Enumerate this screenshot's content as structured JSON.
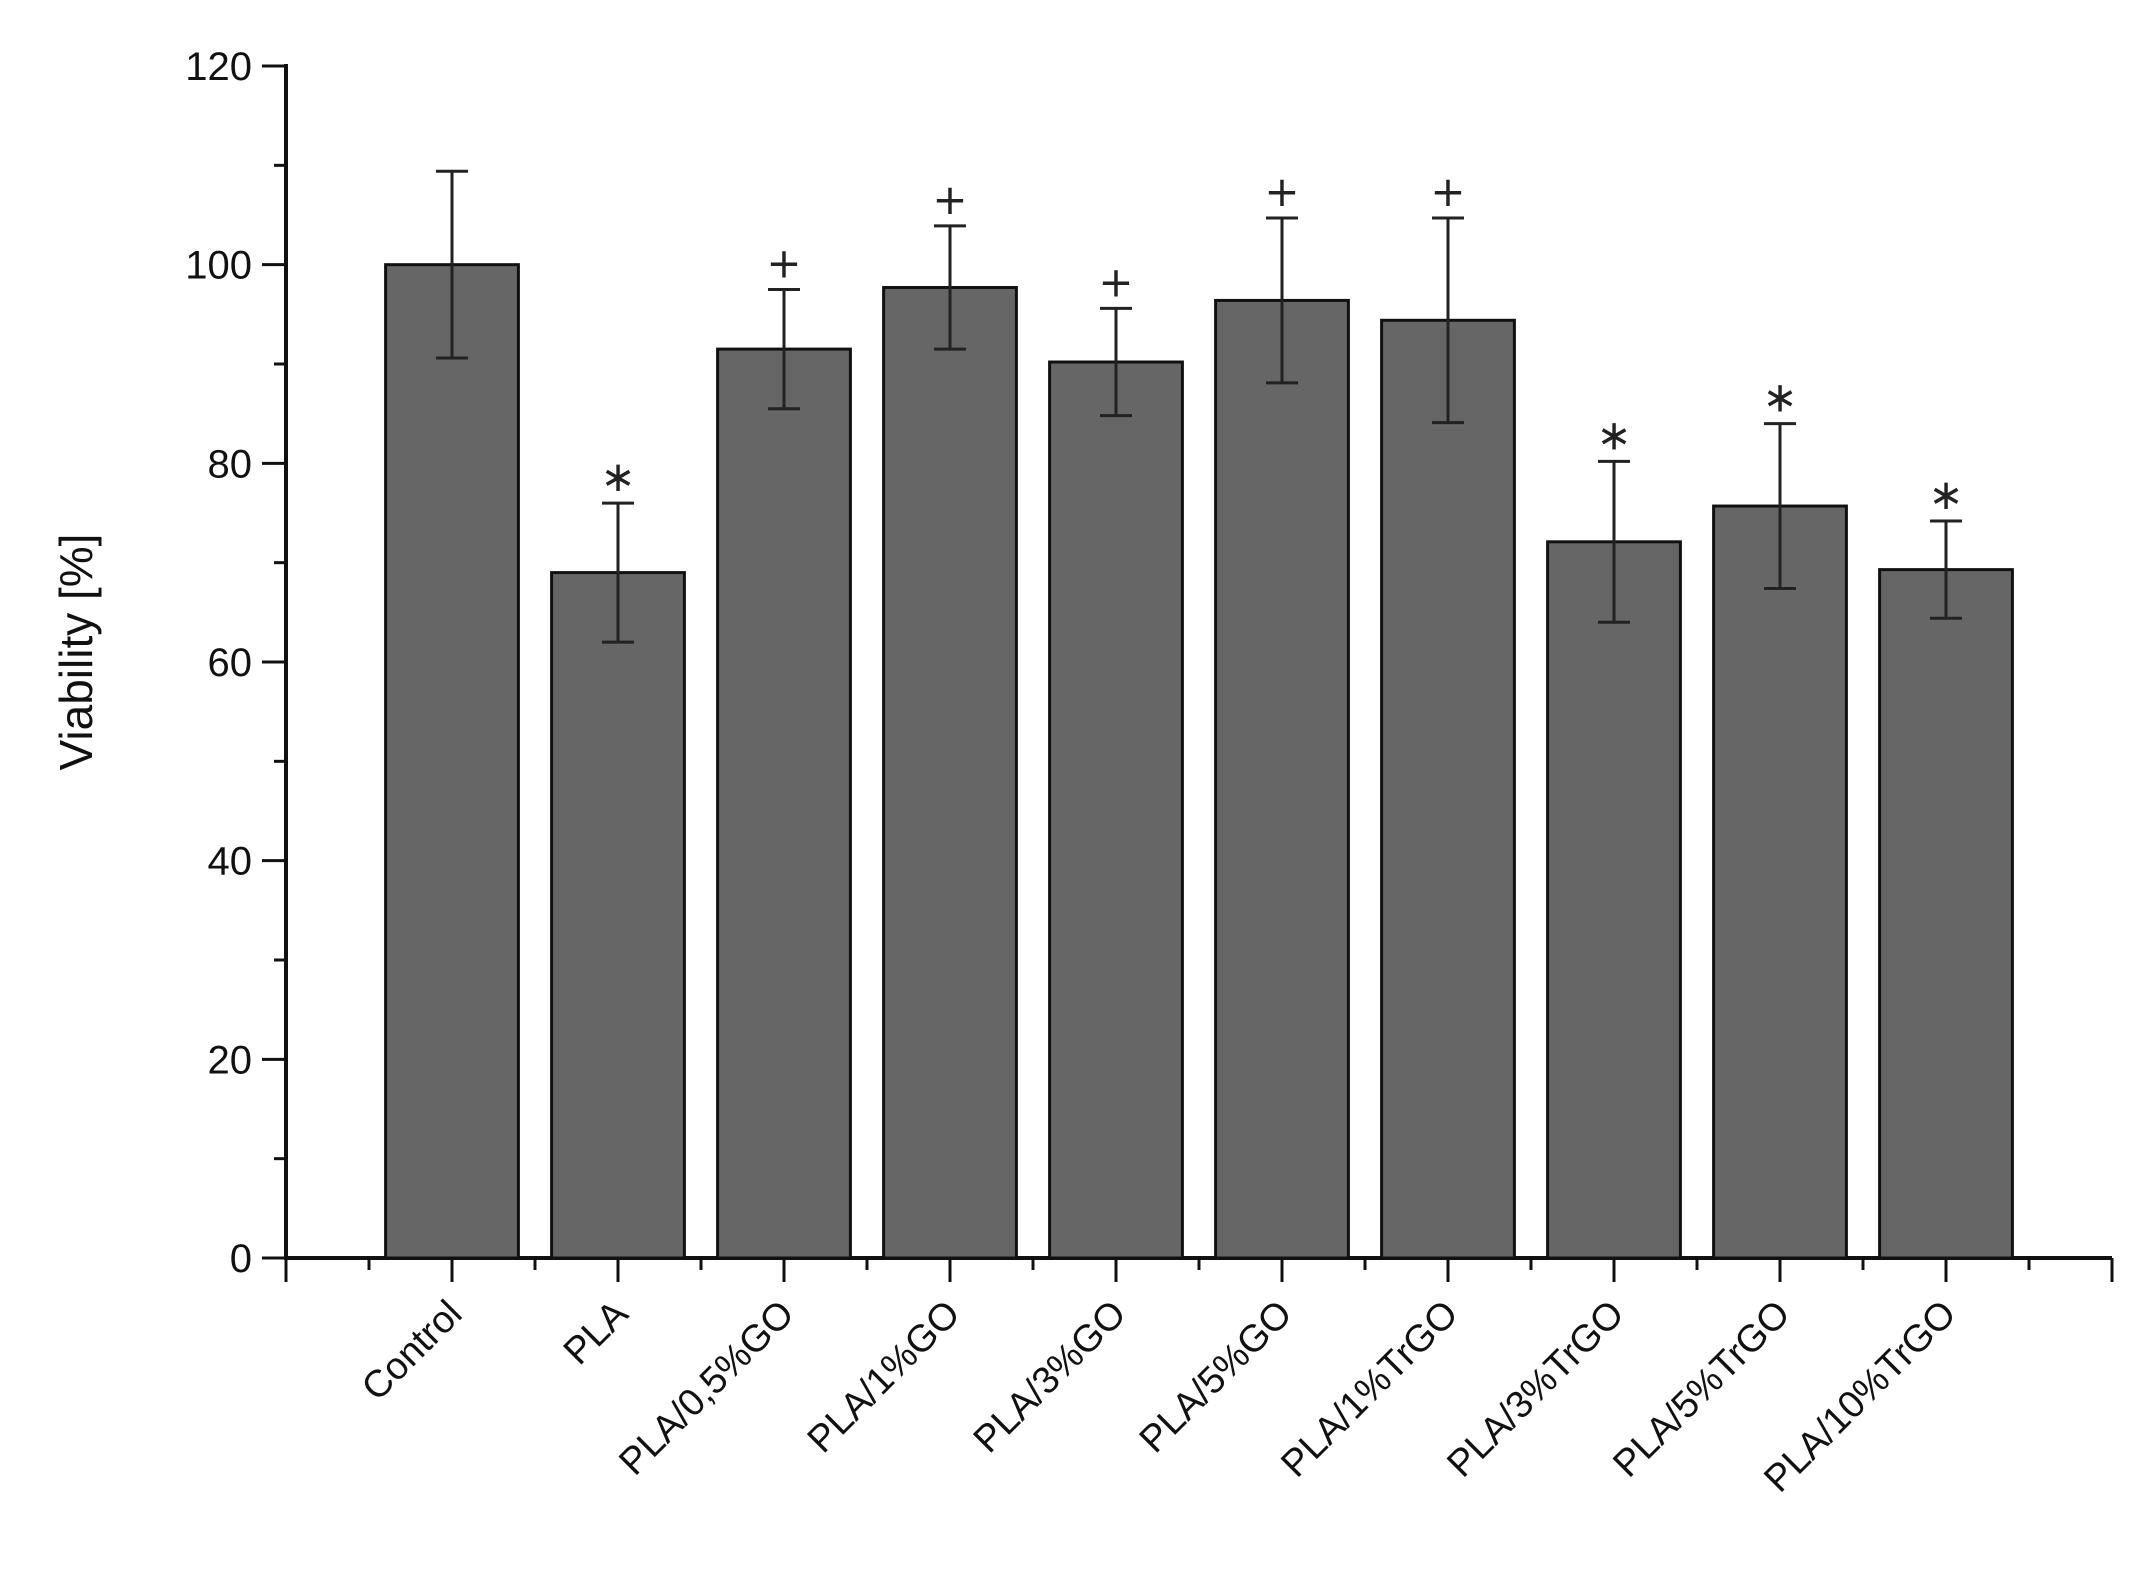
{
  "chart_data": {
    "type": "bar",
    "ylabel": "Viability [%]",
    "ylim": [
      0,
      120
    ],
    "yticks": [
      0,
      20,
      40,
      60,
      80,
      100,
      120
    ],
    "grid": false,
    "bar_color": "#666666",
    "categories": [
      "Control",
      "PLA",
      "PLA/0,5%GO",
      "PLA/1%GO",
      "PLA/3%GO",
      "PLA/5%GO",
      "PLA/1%TrGO",
      "PLA/3%TrGO",
      "PLA/5%TrGO",
      "PLA/10%TrGO"
    ],
    "values": [
      100,
      69,
      91.5,
      97.7,
      90.2,
      96.4,
      94.4,
      72.1,
      75.7,
      69.3
    ],
    "errors": [
      9.4,
      7,
      6,
      6.2,
      5.4,
      8.3,
      10.3,
      8.1,
      8.3,
      4.9
    ],
    "markers": [
      "",
      "∗",
      "+",
      "+",
      "+",
      "+",
      "+",
      "∗",
      "∗",
      "∗"
    ]
  }
}
